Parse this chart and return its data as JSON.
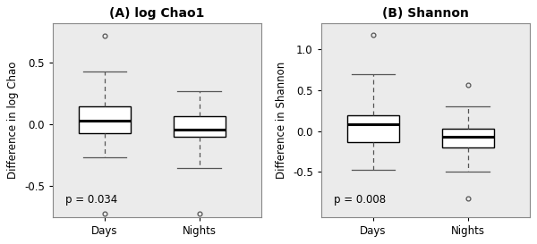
{
  "panels": [
    {
      "title": "(A) log Chao1",
      "ylabel": "Difference in log Chao",
      "pvalue": "p = 0.034",
      "ylim": [
        -0.75,
        0.82
      ],
      "yticks": [
        -0.5,
        0.0,
        0.5
      ],
      "groups": [
        "Days",
        "Nights"
      ],
      "Days": {
        "median": 0.03,
        "q1": -0.07,
        "q3": 0.15,
        "whisker_low": -0.27,
        "whisker_high": 0.43,
        "outliers": [
          0.72,
          -0.72
        ]
      },
      "Nights": {
        "median": -0.04,
        "q1": -0.1,
        "q3": 0.07,
        "whisker_low": -0.35,
        "whisker_high": 0.27,
        "outliers": [
          -0.72
        ]
      }
    },
    {
      "title": "(B) Shannon",
      "ylabel": "Difference in Shannon",
      "pvalue": "p = 0.008",
      "ylim": [
        -1.05,
        1.32
      ],
      "yticks": [
        -0.5,
        0.0,
        0.5,
        1.0
      ],
      "groups": [
        "Days",
        "Nights"
      ],
      "Days": {
        "median": 0.08,
        "q1": -0.13,
        "q3": 0.2,
        "whisker_low": -0.47,
        "whisker_high": 0.7,
        "outliers": [
          1.18
        ]
      },
      "Nights": {
        "median": -0.07,
        "q1": -0.2,
        "q3": 0.03,
        "whisker_low": -0.5,
        "whisker_high": 0.3,
        "outliers": [
          0.57,
          -0.82
        ]
      }
    }
  ],
  "box_color": "#ffffff",
  "median_color": "#000000",
  "whisker_color": "#555555",
  "outlier_color": "#555555",
  "background_color": "#ffffff",
  "axes_face_color": "#ebebeb",
  "title_fontsize": 10,
  "label_fontsize": 8.5,
  "tick_fontsize": 8.5,
  "pvalue_fontsize": 8.5
}
